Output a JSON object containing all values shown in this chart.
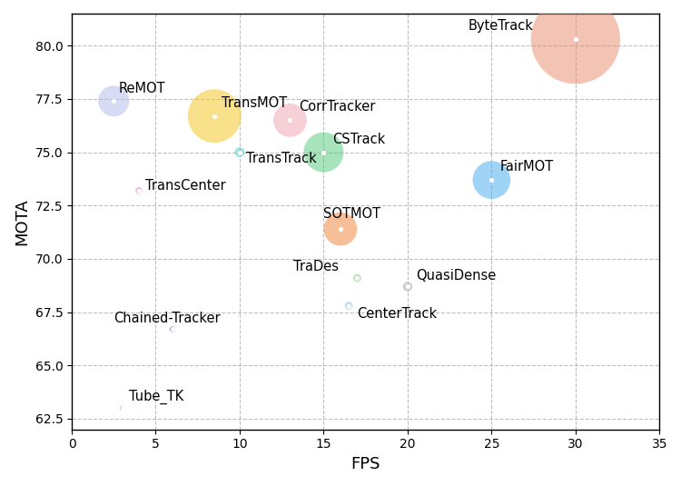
{
  "trackers": [
    {
      "name": "ByteTrack",
      "fps": 30,
      "mota": 80.3,
      "size": 5000,
      "color": "#E8886A",
      "lox": -2.5,
      "loy": 0.3,
      "ha": "right"
    },
    {
      "name": "ReMOT",
      "fps": 2.5,
      "mota": 77.4,
      "size": 600,
      "color": "#B0B8E8",
      "lox": 0.3,
      "loy": 0.25,
      "ha": "left"
    },
    {
      "name": "TransMOT",
      "fps": 8.5,
      "mota": 76.7,
      "size": 1800,
      "color": "#F5C518",
      "lox": 0.4,
      "loy": 0.3,
      "ha": "left"
    },
    {
      "name": "CorrTracker",
      "fps": 13,
      "mota": 76.5,
      "size": 700,
      "color": "#F0A0B0",
      "lox": 0.5,
      "loy": 0.3,
      "ha": "left"
    },
    {
      "name": "TransTrack",
      "fps": 10,
      "mota": 75.0,
      "size": 60,
      "color": "#40C8C0",
      "lox": 0.4,
      "loy": -0.6,
      "ha": "left"
    },
    {
      "name": "CSTrack",
      "fps": 15,
      "mota": 75.0,
      "size": 1000,
      "color": "#50C878",
      "lox": 0.5,
      "loy": 0.3,
      "ha": "left"
    },
    {
      "name": "TransCenter",
      "fps": 4,
      "mota": 73.2,
      "size": 30,
      "color": "#D878C0",
      "lox": 0.4,
      "loy": -0.1,
      "ha": "left"
    },
    {
      "name": "FairMOT",
      "fps": 25,
      "mota": 73.7,
      "size": 900,
      "color": "#40AAEE",
      "lox": 0.5,
      "loy": 0.3,
      "ha": "left"
    },
    {
      "name": "SOTMOT",
      "fps": 16,
      "mota": 71.4,
      "size": 700,
      "color": "#F08030",
      "lox": -1.0,
      "loy": 0.4,
      "ha": "left"
    },
    {
      "name": "TraDes",
      "fps": 17,
      "mota": 69.1,
      "size": 40,
      "color": "#80C880",
      "lox": -3.8,
      "loy": 0.2,
      "ha": "left"
    },
    {
      "name": "QuasiDense",
      "fps": 20,
      "mota": 68.7,
      "size": 60,
      "color": "#A0A8B0",
      "lox": 0.5,
      "loy": 0.2,
      "ha": "left"
    },
    {
      "name": "CenterTrack",
      "fps": 16.5,
      "mota": 67.8,
      "size": 40,
      "color": "#80C0D8",
      "lox": 0.5,
      "loy": -0.7,
      "ha": "left"
    },
    {
      "name": "Chained-Tracker",
      "fps": 6,
      "mota": 66.7,
      "size": 20,
      "color": "#2040C0",
      "lox": -3.5,
      "loy": 0.2,
      "ha": "left"
    },
    {
      "name": "Tube_TK",
      "fps": 3,
      "mota": 63.0,
      "size": 15,
      "color": "#9090A8",
      "lox": 0.4,
      "loy": 0.2,
      "ha": "left"
    }
  ],
  "xlabel": "FPS",
  "ylabel": "MOTA",
  "xlim": [
    0,
    35
  ],
  "ylim": [
    62,
    81.5
  ],
  "yticks": [
    62.5,
    65.0,
    67.5,
    70.0,
    72.5,
    75.0,
    77.5,
    80.0
  ],
  "xticks": [
    0,
    5,
    10,
    15,
    20,
    25,
    30,
    35
  ],
  "figsize": [
    7.5,
    5.35
  ],
  "dpi": 100
}
